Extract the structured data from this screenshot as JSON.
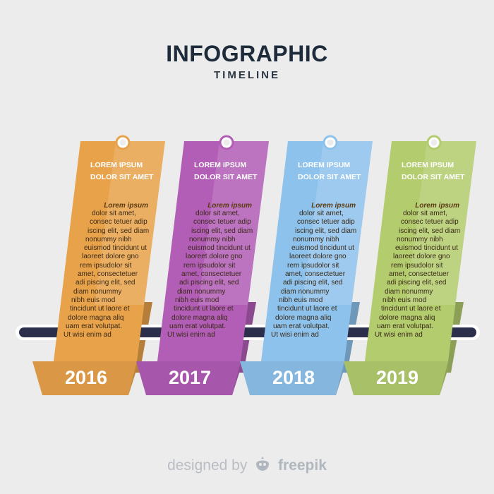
{
  "header": {
    "title": "INFOGRAPHIC",
    "subtitle": "TIMELINE"
  },
  "panels": [
    {
      "year": "2016",
      "heading_1": "LOREM IPSUM",
      "heading_2": "DOLOR SIT AMET",
      "body_title": "Lorem ipsum",
      "body": [
        "dolor sit amet,",
        "consec tetuer adip",
        "iscing elit, sed diam",
        "nonummy nibh",
        "euismod tincidunt ut",
        "laoreet dolore gno",
        "rem ipsudolor sit",
        "amet, consectetuer",
        "adi piscing elit, sed",
        "diam nonummy",
        "nibh euis mod",
        "tincidunt ut laore et",
        "dolore magna aliq",
        "uam erat volutpat.",
        "Ut wisi enim ad"
      ],
      "color": "#E8A24A"
    },
    {
      "year": "2017",
      "heading_1": "LOREM IPSUM",
      "heading_2": "DOLOR SIT AMET",
      "body_title": "Lorem ipsum",
      "body": [
        "dolor sit amet,",
        "consec tetuer adip",
        "iscing elit, sed diam",
        "nonummy nibh",
        "euismod tincidunt ut",
        "laoreet dolore gno",
        "rem ipsudolor sit",
        "amet, consectetuer",
        "adi piscing elit, sed",
        "diam nonummy",
        "nibh euis mod",
        "tincidunt ut laore et",
        "dolore magna aliq",
        "uam erat volutpat.",
        "Ut wisi enim ad"
      ],
      "color": "#B25DB6"
    },
    {
      "year": "2018",
      "heading_1": "LOREM IPSUM",
      "heading_2": "DOLOR SIT AMET",
      "body_title": "Lorem ipsum",
      "body": [
        "dolor sit amet,",
        "consec tetuer adip",
        "iscing elit, sed diam",
        "nonummy nibh",
        "euismod tincidunt ut",
        "laoreet dolore gno",
        "rem ipsudolor sit",
        "amet, consectetuer",
        "adi piscing elit, sed",
        "diam nonummy",
        "nibh euis mod",
        "tincidunt ut laore et",
        "dolore magna aliq",
        "uam erat volutpat.",
        "Ut wisi enim ad"
      ],
      "color": "#8DC2EC"
    },
    {
      "year": "2019",
      "heading_1": "LOREM IPSUM",
      "heading_2": "DOLOR SIT AMET",
      "body_title": "Lorem ipsum",
      "body": [
        "dolor sit amet,",
        "consec tetuer adip",
        "iscing elit, sed diam",
        "nonummy nibh",
        "euismod tincidunt ut",
        "laoreet dolore gno",
        "rem ipsudolor sit",
        "amet, consectetuer",
        "adi piscing elit, sed",
        "diam nonummy",
        "nibh euis mod",
        "tincidunt ut laore et",
        "dolore magna aliq",
        "uam erat volutpat.",
        "Ut wisi enim ad"
      ],
      "color": "#B3CC6E"
    }
  ],
  "timeline": {
    "color": "#2B2F4C"
  },
  "footer": {
    "designed_by": "designed by",
    "brand": "freepik",
    "icon": "freepik-logo-icon"
  }
}
